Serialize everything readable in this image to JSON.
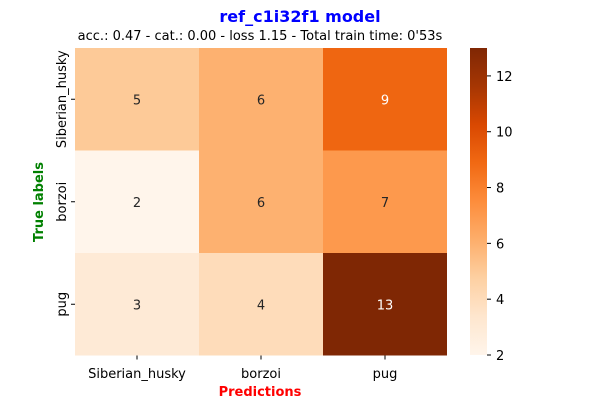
{
  "chart_data": {
    "type": "heatmap",
    "title": "ref_c1i32f1 model",
    "subtitle": "acc.: 0.47 - cat.: 0.00 - loss 1.15 - Total train time: 0'53s",
    "xlabel": "Predictions",
    "ylabel": "True labels",
    "x_categories": [
      "Siberian_husky",
      "borzoi",
      "pug"
    ],
    "y_categories": [
      "Siberian_husky",
      "borzoi",
      "pug"
    ],
    "values": [
      [
        5,
        6,
        9
      ],
      [
        2,
        6,
        7
      ],
      [
        3,
        4,
        13
      ]
    ],
    "colorbar": {
      "range": [
        2,
        13
      ],
      "ticks": [
        "2",
        "4",
        "6",
        "8",
        "10",
        "12"
      ]
    },
    "colormap": "Oranges",
    "colors": {
      "title": "#0000ff",
      "xlabel": "#ff0000",
      "ylabel": "#008000"
    }
  }
}
